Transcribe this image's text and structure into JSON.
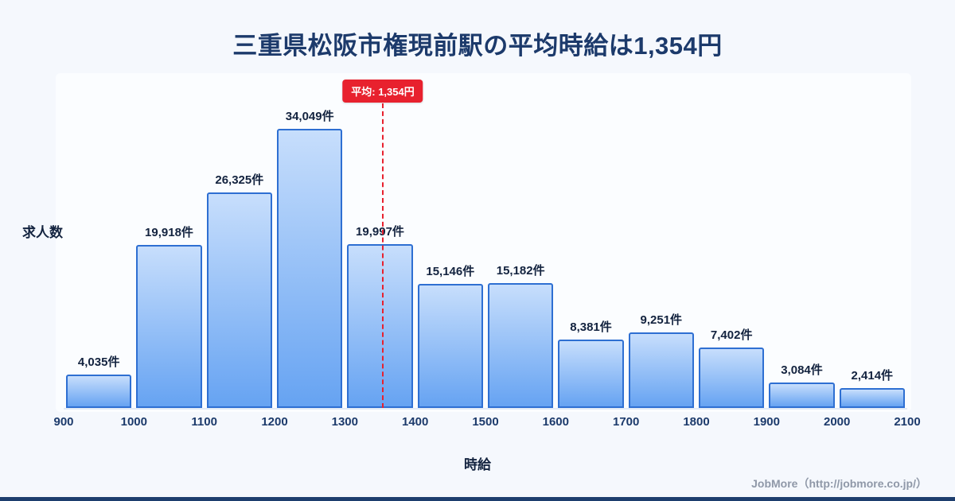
{
  "title": "三重県松阪市権現前駅の平均時給は1,354円",
  "chart_data": {
    "type": "bar",
    "x_min": 900,
    "x_max": 2100,
    "bin_width": 100,
    "categories": [
      "900-1000",
      "1000-1100",
      "1100-1200",
      "1200-1300",
      "1300-1400",
      "1400-1500",
      "1500-1600",
      "1600-1700",
      "1700-1800",
      "1800-1900",
      "1900-2000",
      "2000-2100"
    ],
    "values": [
      4035,
      19918,
      26325,
      34049,
      19997,
      15146,
      15182,
      8381,
      9251,
      7402,
      3084,
      2414
    ],
    "labels": [
      "4,035件",
      "19,918件",
      "26,325件",
      "34,049件",
      "19,997件",
      "15,146件",
      "15,182件",
      "8,381件",
      "9,251件",
      "7,402件",
      "3,084件",
      "2,414件"
    ],
    "x_ticks": [
      "900",
      "1000",
      "1100",
      "1200",
      "1300",
      "1400",
      "1500",
      "1600",
      "1700",
      "1800",
      "1900",
      "2000",
      "2100"
    ],
    "xlabel": "時給",
    "ylabel": "求人数",
    "ylim": [
      0,
      36000
    ],
    "grid": false,
    "legend": "none",
    "mean": {
      "value": 1354,
      "label": "平均: 1,354円"
    },
    "colors": {
      "bar_top": "#c7defc",
      "bar_bottom": "#66a3f2",
      "bar_border": "#2e6fd2",
      "mean": "#e8212e",
      "title_text": "#1c3a6b",
      "accent_strip": "#1d3e6e"
    }
  },
  "footer": {
    "credit": "JobMore（http://jobmore.co.jp/）"
  }
}
